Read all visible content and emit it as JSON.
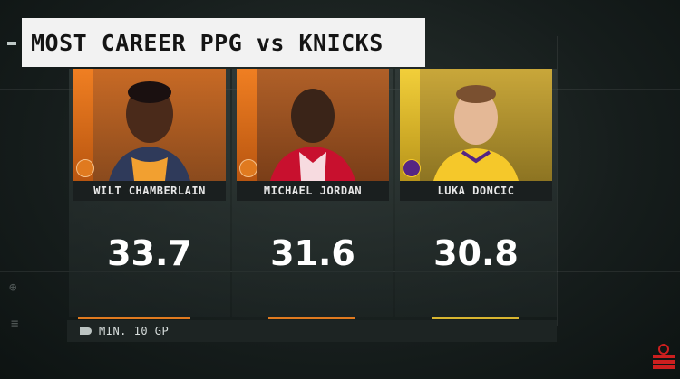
{
  "title": "MOST CAREER PPG vs KNICKS",
  "players": [
    {
      "name": "WILT CHAMBERLAIN",
      "ppg": "33.7",
      "accent": "#e07a1f",
      "logo": "suns-logo"
    },
    {
      "name": "MICHAEL JORDAN",
      "ppg": "31.6",
      "accent": "#e07a1f",
      "logo": "suns-logo"
    },
    {
      "name": "LUKA DONCIC",
      "ppg": "30.8",
      "accent": "#d8b530",
      "logo": "lakers-logo"
    }
  ],
  "footer": {
    "note": "MIN. 10 GP"
  },
  "brand": {
    "logo": "espn-logo",
    "color": "#cc1f1f"
  }
}
